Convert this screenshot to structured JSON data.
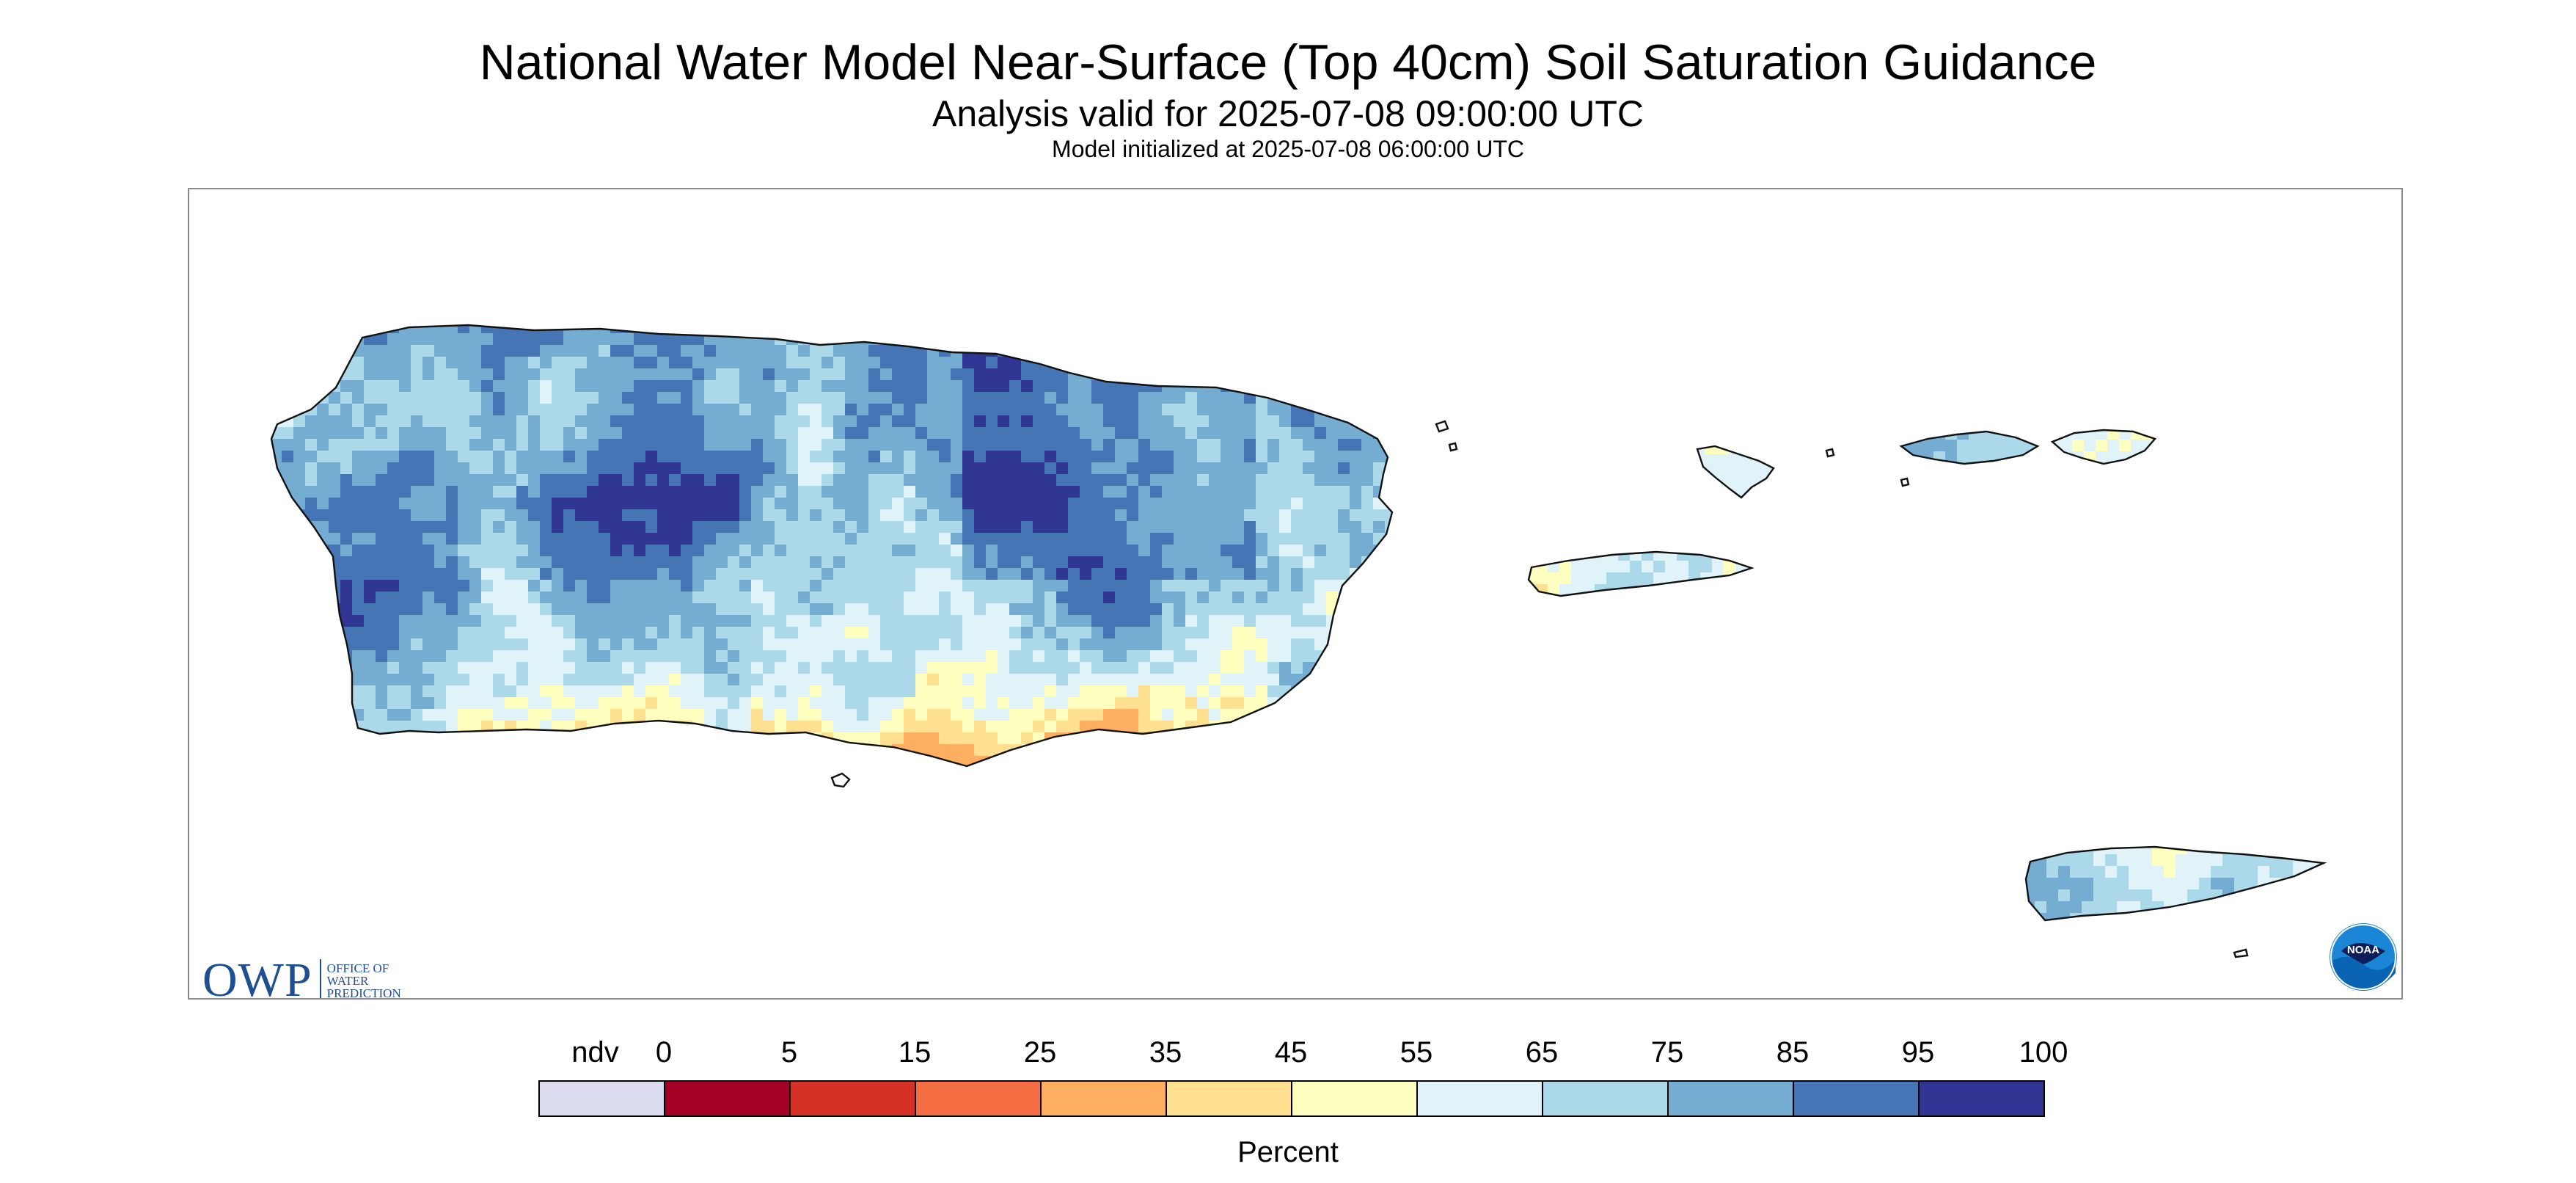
{
  "title": "National Water Model Near-Surface (Top 40cm) Soil Saturation Guidance",
  "subtitle": "Analysis valid for 2025-07-08 09:00:00 UTC",
  "model_init": "Model initialized at 2025-07-08 06:00:00 UTC",
  "legend": {
    "units": "Percent",
    "labels": [
      "ndv",
      "0",
      "5",
      "15",
      "25",
      "35",
      "45",
      "55",
      "65",
      "75",
      "85",
      "95",
      "100"
    ],
    "colors": [
      "#dcdcf0",
      "#a50026",
      "#d73027",
      "#f46d43",
      "#fdae61",
      "#fee090",
      "#ffffbf",
      "#e0f3f8",
      "#abd9e9",
      "#74add1",
      "#4575b4",
      "#313695"
    ]
  },
  "map": {
    "regions": [
      "Puerto Rico",
      "Vieques",
      "Culebra",
      "St. Thomas",
      "St. John",
      "St. Croix"
    ],
    "dominant_class": "65-85"
  },
  "logos": {
    "owp_letters": "OWP",
    "owp_text": [
      "OFFICE OF",
      "WATER",
      "PREDICTION"
    ],
    "noaa_text": "NOAA"
  }
}
